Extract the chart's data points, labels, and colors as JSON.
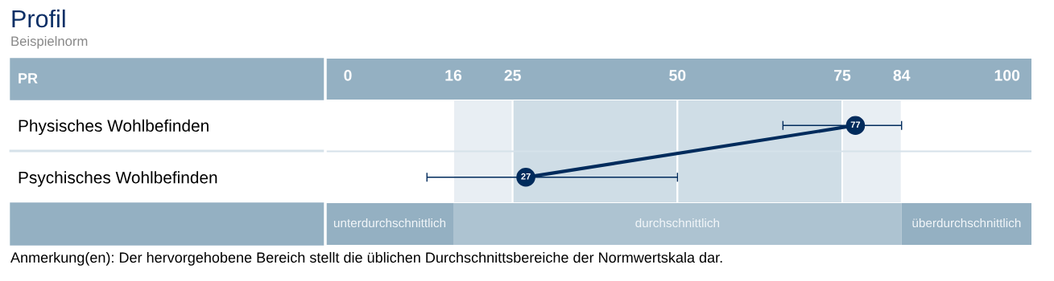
{
  "chart_data": {
    "type": "line",
    "orientation": "horizontal",
    "title": "Profil",
    "subtitle": "Beispielnorm",
    "xlabel": "PR",
    "categories": [
      "Physisches Wohlbefinden",
      "Psychisches Wohlbefinden"
    ],
    "values": [
      77,
      27
    ],
    "errors": [
      [
        66,
        84
      ],
      [
        12,
        50
      ]
    ],
    "color": "#002b5c",
    "marker": "circle",
    "data_labels": true,
    "xlim": [
      -3.3,
      103.7
    ],
    "xticks": [
      0,
      16,
      25,
      50,
      75,
      84,
      100
    ],
    "bands": [
      {
        "axis": "x",
        "from": 16,
        "to": 25,
        "color": "#e8eef3"
      },
      {
        "axis": "x",
        "from": 25,
        "to": 50,
        "color": "#cfdde6"
      },
      {
        "axis": "x",
        "from": 50,
        "to": 75,
        "color": "#cfdde6"
      },
      {
        "axis": "x",
        "from": 75,
        "to": 84,
        "color": "#e8eef3"
      }
    ],
    "annotations": [
      "unterdurchschnittlich",
      "durchschnittlich",
      "überdurchschnittlich",
      "Anmerkung(en): Der hervorgehobene Bereich stellt die üblichen Durchschnittsbereiche der Normwertskala dar."
    ]
  }
}
